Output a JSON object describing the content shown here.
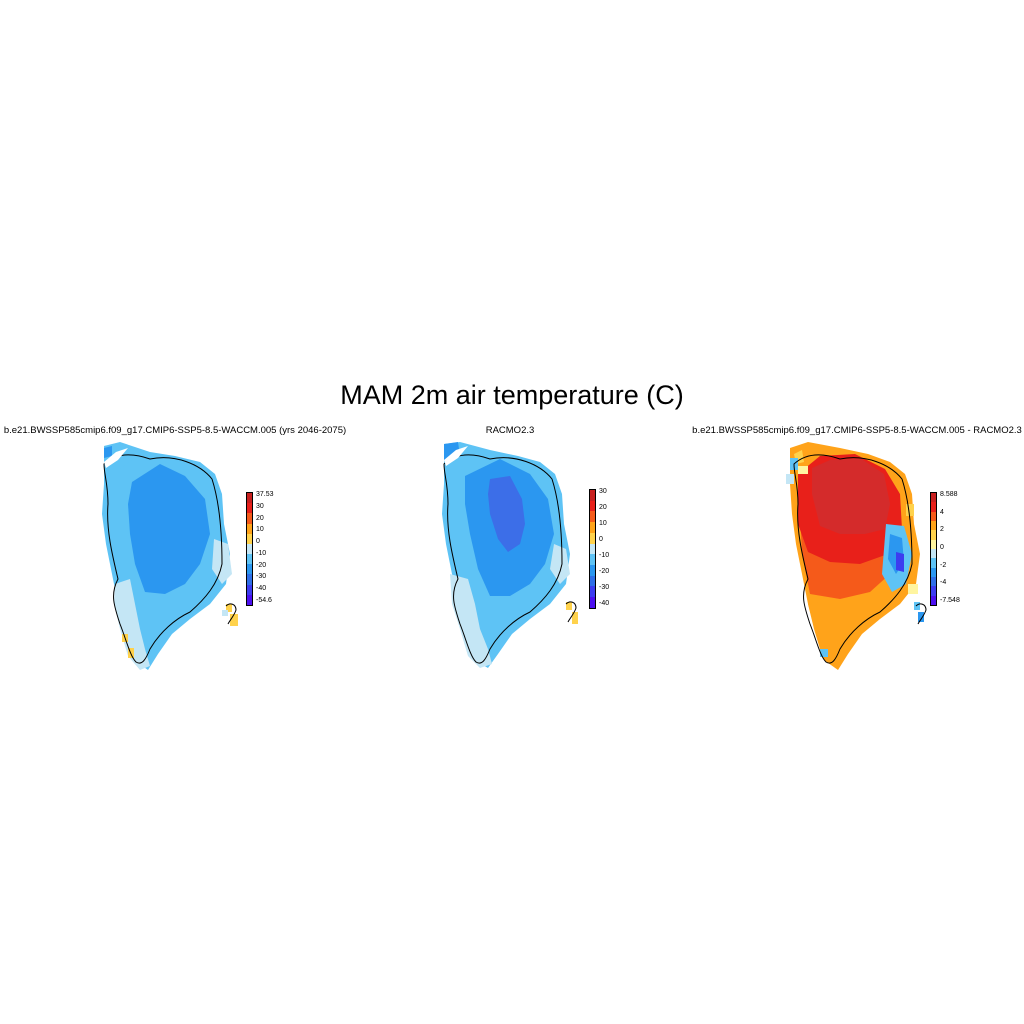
{
  "title": "MAM 2m air temperature (C)",
  "panels": [
    {
      "title": "b.e21.BWSSP585cmip6.f09_g17.CMIP6-SSP5-8.5-WACCM.005 (yrs 2046-2075)",
      "colorbar": {
        "colors": [
          "#4b10f0",
          "#3c3cf0",
          "#2f6ee8",
          "#2b97f0",
          "#5ec3f5",
          "#c4e6f5",
          "#ffd24c",
          "#ffa31a",
          "#f55a1a",
          "#e8201a",
          "#c8201f"
        ],
        "labels": [
          "37.53",
          "30",
          "20",
          "10",
          "0",
          "-10",
          "-20",
          "-30",
          "-40",
          "-54.6"
        ]
      }
    },
    {
      "title": "RACMO2.3",
      "colorbar": {
        "colors": [
          "#4b10f0",
          "#3c3cf0",
          "#2f6ee8",
          "#2b97f0",
          "#5ec3f5",
          "#c4e6f5",
          "#ffd24c",
          "#ffa31a",
          "#f55a1a",
          "#e8201a",
          "#c8201f"
        ],
        "labels": [
          "30",
          "20",
          "10",
          "0",
          "-10",
          "-20",
          "-30",
          "-40"
        ]
      }
    },
    {
      "title": "b.e21.BWSSP585cmip6.f09_g17.CMIP6-SSP5-8.5-WACCM.005 - RACMO2.3",
      "colorbar": {
        "colors": [
          "#4b10f0",
          "#3c3cf0",
          "#2f6ee8",
          "#2b97f0",
          "#5ec3f5",
          "#c4e6f5",
          "#fff5a0",
          "#ffd24c",
          "#ffa31a",
          "#f55a1a",
          "#e8201a",
          "#c8201f"
        ],
        "labels": [
          "8.588",
          "4",
          "2",
          "0",
          "-2",
          "-4",
          "-7.548"
        ]
      }
    }
  ]
}
